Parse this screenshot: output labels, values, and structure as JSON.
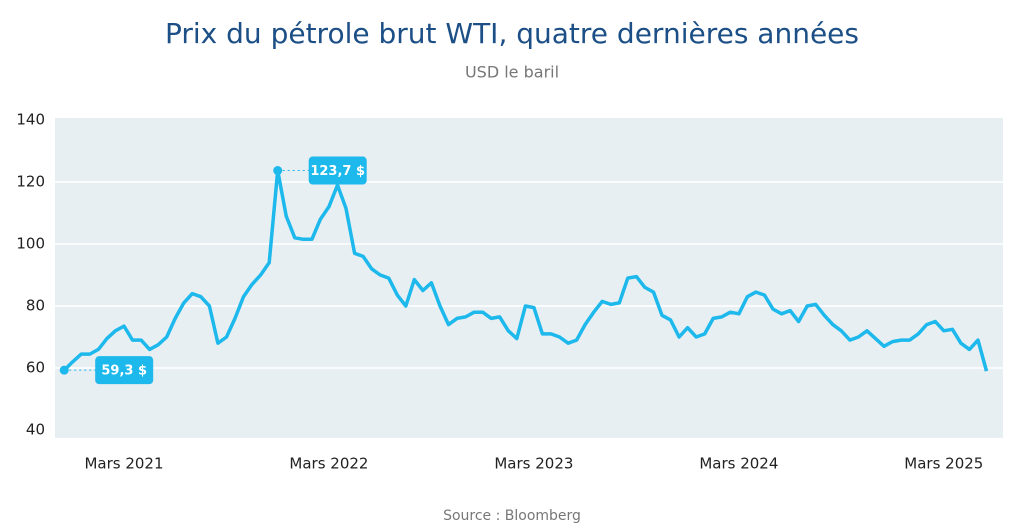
{
  "chart_data": {
    "type": "line",
    "title": "Prix du pétrole brut WTI, quatre dernières années",
    "subtitle": "USD le baril",
    "source": "Source : Bloomberg",
    "categories": [
      null,
      null,
      null,
      null,
      null,
      null,
      null,
      "Mars 2021",
      null,
      null,
      null,
      null,
      null,
      null,
      null,
      null,
      null,
      null,
      null,
      null,
      null,
      null,
      null,
      null,
      null,
      null,
      null,
      null,
      null,
      null,
      null,
      "Mars 2022",
      null,
      null,
      null,
      null,
      null,
      null,
      null,
      null,
      null,
      null,
      null,
      null,
      null,
      null,
      null,
      null,
      null,
      null,
      null,
      null,
      null,
      null,
      null,
      "Mars 2023",
      null,
      null,
      null,
      null,
      null,
      null,
      null,
      null,
      null,
      null,
      null,
      null,
      null,
      null,
      null,
      null,
      null,
      null,
      null,
      null,
      null,
      null,
      null,
      "Mars 2024",
      null,
      null,
      null,
      null,
      null,
      null,
      null,
      null,
      null,
      null,
      null,
      null,
      null,
      null,
      null,
      null,
      null,
      null,
      null,
      null,
      null,
      null,
      null,
      "Mars 2025",
      null,
      null,
      null,
      null,
      null
    ],
    "values": [
      59.3,
      62,
      64.5,
      64.5,
      66,
      69.5,
      72,
      73.5,
      69,
      69,
      66,
      67.5,
      70,
      76,
      81,
      84,
      83,
      80,
      68,
      70,
      76,
      83,
      87,
      90,
      94,
      123.7,
      109,
      102,
      101.5,
      101.5,
      108,
      112,
      119,
      111.5,
      97,
      96,
      92,
      90,
      89,
      83.5,
      80,
      88.5,
      85,
      87.5,
      80,
      74,
      76,
      76.5,
      78,
      78,
      76,
      76.5,
      72,
      69.5,
      80,
      79.5,
      71,
      71,
      70,
      68,
      69,
      74,
      78,
      81.5,
      80.5,
      81,
      89,
      89.5,
      86,
      84.5,
      77,
      75.5,
      70,
      73,
      70,
      71,
      76,
      76.5,
      78,
      77.5,
      83,
      84.5,
      83.5,
      79,
      77.5,
      78.5,
      75,
      80,
      80.5,
      77,
      74,
      72,
      69,
      70,
      72,
      69.5,
      67,
      68.5,
      69,
      69,
      71,
      74,
      75,
      72,
      72.5,
      68,
      66,
      69,
      59
    ],
    "value_labels": [
      "59,3 $",
      null,
      null,
      null,
      null,
      null,
      null,
      null,
      null,
      null,
      null,
      null,
      null,
      null,
      null,
      null,
      null,
      null,
      null,
      null,
      null,
      null,
      null,
      null,
      null,
      "123,7 $",
      null,
      null,
      null,
      null,
      null,
      null,
      null,
      null,
      null,
      null,
      null,
      null,
      null,
      null,
      null,
      null,
      null,
      null,
      null,
      null,
      null,
      null,
      null,
      null,
      null,
      null,
      null,
      null,
      null,
      null,
      null,
      null,
      null,
      null,
      null,
      null,
      null,
      null,
      null,
      null,
      null,
      null,
      null,
      null,
      null,
      null,
      null,
      null,
      null,
      null,
      null,
      null,
      null,
      null,
      null,
      null,
      null,
      null,
      null,
      null,
      null,
      null,
      null,
      null,
      null,
      null,
      null,
      null,
      null,
      null,
      null,
      null,
      null,
      null,
      null,
      null,
      null,
      null,
      null,
      null,
      null,
      null,
      null
    ],
    "color": "#1db8ec",
    "ylim": [
      40,
      140
    ],
    "yticks": [
      40,
      60,
      80,
      100,
      120,
      140
    ],
    "grid": true
  }
}
